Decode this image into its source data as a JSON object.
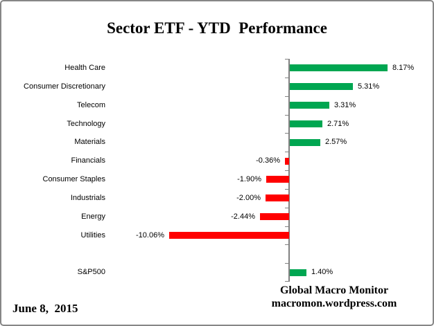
{
  "title": "Sector ETF - YTD  Performance",
  "footer": {
    "date": "June 8,  2015",
    "source_line1": "Global Macro Monitor",
    "source_line2": "macromon.wordpress.com"
  },
  "colors": {
    "positive": "#00A651",
    "negative": "#FF0000",
    "axis": "#808080"
  },
  "chart_data": {
    "type": "bar",
    "orientation": "horizontal",
    "title": "Sector ETF - YTD  Performance",
    "xlabel": "",
    "ylabel": "",
    "grid": false,
    "legend": false,
    "axis_labels_shown": false,
    "xlim_pct": [
      -12.5,
      12.0
    ],
    "categories": [
      "Health Care",
      "Consumer Discretionary",
      "Telecom",
      "Technology",
      "Materials",
      "Financials",
      "Consumer Staples",
      "Industrials",
      "Energy",
      "Utilities",
      "",
      "S&P500"
    ],
    "values": [
      8.17,
      5.31,
      3.31,
      2.71,
      2.57,
      -0.36,
      -1.9,
      -2.0,
      -2.44,
      -10.06,
      null,
      1.4
    ],
    "value_labels": [
      "8.17%",
      "5.31%",
      "3.31%",
      "2.71%",
      "2.57%",
      "-0.36%",
      "-1.90%",
      "-2.00%",
      "-2.44%",
      "-10.06%",
      "",
      "1.40%"
    ]
  }
}
